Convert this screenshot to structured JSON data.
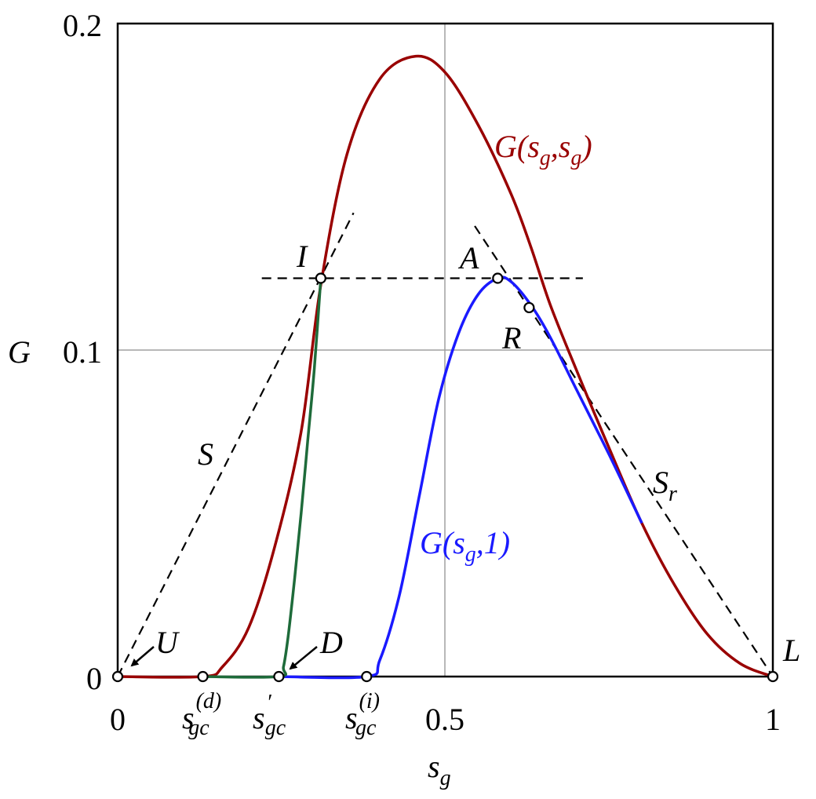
{
  "chart_data": {
    "type": "line",
    "xlabel": "s",
    "xlabel_sub": "g",
    "ylabel": "G",
    "xlim": [
      0,
      1
    ],
    "ylim": [
      0,
      0.2
    ],
    "x_ticks": [
      "0",
      "0.5",
      "1"
    ],
    "y_ticks": [
      "0",
      "0.1",
      "0.2"
    ],
    "grid": true,
    "series": [
      {
        "name": "G(s_g,s_g)",
        "label_main": "G(s",
        "label_sub1": "g",
        "label_mid": ",s",
        "label_sub2": "g",
        "label_end": ")",
        "color": "#990000",
        "points": [
          [
            0,
            0
          ],
          [
            0.13,
            0
          ],
          [
            0.16,
            0.003
          ],
          [
            0.2,
            0.015
          ],
          [
            0.24,
            0.04
          ],
          [
            0.28,
            0.075
          ],
          [
            0.31,
            0.12
          ],
          [
            0.35,
            0.16
          ],
          [
            0.4,
            0.183
          ],
          [
            0.455,
            0.19
          ],
          [
            0.5,
            0.185
          ],
          [
            0.55,
            0.169
          ],
          [
            0.6,
            0.148
          ],
          [
            0.63,
            0.132
          ],
          [
            0.66,
            0.114
          ],
          [
            0.7,
            0.094
          ],
          [
            0.75,
            0.07
          ],
          [
            0.8,
            0.047
          ],
          [
            0.85,
            0.028
          ],
          [
            0.9,
            0.013
          ],
          [
            0.95,
            0.004
          ],
          [
            1,
            0
          ]
        ]
      },
      {
        "name": "G(s_g,1)",
        "label_main": "G(s",
        "label_sub1": "g",
        "label_mid": ",1)",
        "color": "#1a1aff",
        "points": [
          [
            0.246,
            0
          ],
          [
            0.38,
            0
          ],
          [
            0.4,
            0.005
          ],
          [
            0.43,
            0.025
          ],
          [
            0.46,
            0.055
          ],
          [
            0.49,
            0.085
          ],
          [
            0.52,
            0.105
          ],
          [
            0.55,
            0.117
          ],
          [
            0.58,
            0.122
          ],
          [
            0.6,
            0.121
          ],
          [
            0.63,
            0.114
          ],
          [
            0.66,
            0.104
          ],
          [
            0.7,
            0.088
          ],
          [
            0.75,
            0.068
          ],
          [
            0.8,
            0.047
          ]
        ]
      },
      {
        "name": "",
        "color": "#1e6b3a",
        "points": [
          [
            0.13,
            0
          ],
          [
            0.246,
            0
          ],
          [
            0.253,
            0.003
          ],
          [
            0.26,
            0.012
          ],
          [
            0.27,
            0.03
          ],
          [
            0.28,
            0.05
          ],
          [
            0.29,
            0.072
          ],
          [
            0.3,
            0.094
          ],
          [
            0.31,
            0.122
          ]
        ]
      }
    ],
    "dashed_lines": [
      {
        "name": "S",
        "points": [
          [
            0,
            0
          ],
          [
            0.36,
            0.142
          ]
        ]
      },
      {
        "name": "horizontal-tangent",
        "points": [
          [
            0.22,
            0.122
          ],
          [
            0.71,
            0.122
          ]
        ]
      },
      {
        "name": "S_r",
        "points": [
          [
            0.545,
            0.138
          ],
          [
            1,
            0
          ]
        ]
      }
    ],
    "markers": [
      {
        "name": "U",
        "x": 0,
        "y": 0
      },
      {
        "name": "s_gc^(d)",
        "x": 0.13,
        "y": 0
      },
      {
        "name": "s_gc'",
        "x": 0.246,
        "y": 0
      },
      {
        "name": "s_gc^(i)",
        "x": 0.38,
        "y": 0
      },
      {
        "name": "I",
        "x": 0.31,
        "y": 0.122
      },
      {
        "name": "A",
        "x": 0.58,
        "y": 0.122
      },
      {
        "name": "R",
        "x": 0.628,
        "y": 0.113
      },
      {
        "name": "L",
        "x": 1,
        "y": 0
      }
    ],
    "annotations": {
      "I": "I",
      "A": "A",
      "R": "R",
      "U": "U",
      "D": "D",
      "L": "L",
      "S": "S",
      "Sr_main": "S",
      "Sr_sub": "r",
      "sgc_main": "s",
      "sgc_sub": "gc",
      "sgc_d_sup": "(d)",
      "sgc_i_sup": "(i)",
      "sgc_prime": "′"
    }
  }
}
